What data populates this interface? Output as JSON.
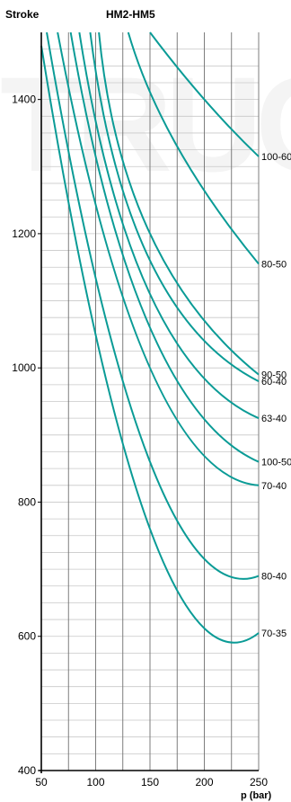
{
  "header": {
    "left": "Stroke",
    "center": "HM2-HM5"
  },
  "colors": {
    "curve": "#0a9b96",
    "grid_minor": "#c8c8c8",
    "grid_major": "#707070",
    "axis": "#000000",
    "watermark": "#ececec"
  },
  "chart_data": {
    "type": "line",
    "title": "HM2-HM5",
    "ylabel": "Stroke",
    "xlabel": "p (bar)",
    "xlim": [
      50,
      250
    ],
    "ylim": [
      400,
      1500
    ],
    "x_ticks": [
      "50",
      "100",
      "150",
      "200",
      "250"
    ],
    "y_ticks": [
      "400",
      "600",
      "800",
      "1000",
      "1200",
      "1400"
    ],
    "grid": true,
    "series": [
      {
        "name": "100-60",
        "points": [
          [
            150,
            1500
          ],
          [
            200,
            1400
          ],
          [
            250,
            1315
          ]
        ]
      },
      {
        "name": "80-50",
        "points": [
          [
            130,
            1500
          ],
          [
            175,
            1330
          ],
          [
            250,
            1155
          ]
        ]
      },
      {
        "name": "90-50",
        "points": [
          [
            103,
            1500
          ],
          [
            150,
            1200
          ],
          [
            250,
            990
          ]
        ]
      },
      {
        "name": "60-40",
        "points": [
          [
            95,
            1500
          ],
          [
            150,
            1160
          ],
          [
            250,
            980
          ]
        ]
      },
      {
        "name": "63-40",
        "points": [
          [
            85,
            1500
          ],
          [
            150,
            1110
          ],
          [
            250,
            925
          ]
        ]
      },
      {
        "name": "100-50",
        "points": [
          [
            77,
            1500
          ],
          [
            150,
            1060
          ],
          [
            250,
            860
          ]
        ]
      },
      {
        "name": "70-40",
        "points": [
          [
            65,
            1500
          ],
          [
            150,
            1000
          ],
          [
            250,
            825
          ]
        ]
      },
      {
        "name": "80-40",
        "points": [
          [
            55,
            1500
          ],
          [
            150,
            860
          ],
          [
            250,
            690
          ]
        ]
      },
      {
        "name": "70-35",
        "points": [
          [
            50,
            1480
          ],
          [
            150,
            760
          ],
          [
            250,
            605
          ]
        ]
      }
    ]
  }
}
